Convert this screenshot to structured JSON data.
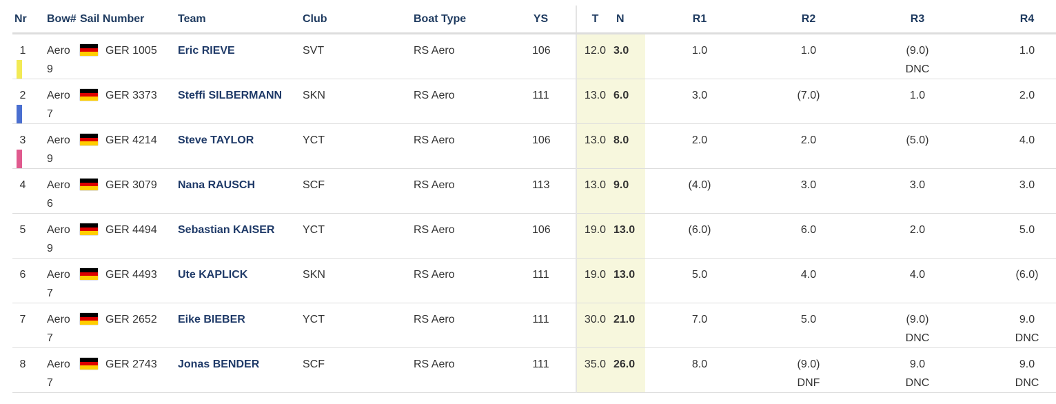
{
  "headers": {
    "nr": "Nr",
    "bow": "Bow#",
    "sail": "Sail Number",
    "team": "Team",
    "club": "Club",
    "boat_type": "Boat Type",
    "ys": "YS",
    "t": "T",
    "n": "N",
    "r1": "R1",
    "r2": "R2",
    "r3": "R3",
    "r4": "R4"
  },
  "colors": {
    "header_text": "#1e3a5f",
    "team_text": "#1f3a68",
    "highlight_column": "#f7f7dd",
    "bow_bar_1": "#f2ea55",
    "bow_bar_2": "#4a6fd0",
    "bow_bar_3": "#e05a8e"
  },
  "rows": [
    {
      "nr": "1",
      "bar": "yellow",
      "bow_a": "Aero",
      "bow_b": "9",
      "flag": "germany-flag-icon",
      "sail": "GER 1005",
      "team": "Eric RIEVE",
      "club": "SVT",
      "boat": "RS Aero",
      "ys": "106",
      "t": "12.0",
      "n": "3.0",
      "r1": "1.0",
      "r1b": "",
      "r2": "1.0",
      "r2b": "",
      "r3": "(9.0)",
      "r3b": "DNC",
      "r4": "1.0",
      "r4b": ""
    },
    {
      "nr": "2",
      "bar": "blue",
      "bow_a": "Aero",
      "bow_b": "7",
      "flag": "germany-flag-icon",
      "sail": "GER 3373",
      "team": "Steffi SILBERMANN",
      "club": "SKN",
      "boat": "RS Aero",
      "ys": "111",
      "t": "13.0",
      "n": "6.0",
      "r1": "3.0",
      "r1b": "",
      "r2": "(7.0)",
      "r2b": "",
      "r3": "1.0",
      "r3b": "",
      "r4": "2.0",
      "r4b": ""
    },
    {
      "nr": "3",
      "bar": "pink",
      "bow_a": "Aero",
      "bow_b": "9",
      "flag": "germany-flag-icon",
      "sail": "GER 4214",
      "team": "Steve TAYLOR",
      "club": "YCT",
      "boat": "RS Aero",
      "ys": "106",
      "t": "13.0",
      "n": "8.0",
      "r1": "2.0",
      "r1b": "",
      "r2": "2.0",
      "r2b": "",
      "r3": "(5.0)",
      "r3b": "",
      "r4": "4.0",
      "r4b": ""
    },
    {
      "nr": "4",
      "bar": "",
      "bow_a": "Aero",
      "bow_b": "6",
      "flag": "germany-flag-icon",
      "sail": "GER 3079",
      "team": "Nana RAUSCH",
      "club": "SCF",
      "boat": "RS Aero",
      "ys": "113",
      "t": "13.0",
      "n": "9.0",
      "r1": "(4.0)",
      "r1b": "",
      "r2": "3.0",
      "r2b": "",
      "r3": "3.0",
      "r3b": "",
      "r4": "3.0",
      "r4b": ""
    },
    {
      "nr": "5",
      "bar": "",
      "bow_a": "Aero",
      "bow_b": "9",
      "flag": "germany-flag-icon",
      "sail": "GER 4494",
      "team": "Sebastian KAISER",
      "club": "YCT",
      "boat": "RS Aero",
      "ys": "106",
      "t": "19.0",
      "n": "13.0",
      "r1": "(6.0)",
      "r1b": "",
      "r2": "6.0",
      "r2b": "",
      "r3": "2.0",
      "r3b": "",
      "r4": "5.0",
      "r4b": ""
    },
    {
      "nr": "6",
      "bar": "",
      "bow_a": "Aero",
      "bow_b": "7",
      "flag": "germany-flag-icon",
      "sail": "GER 4493",
      "team": "Ute KAPLICK",
      "club": "SKN",
      "boat": "RS Aero",
      "ys": "111",
      "t": "19.0",
      "n": "13.0",
      "r1": "5.0",
      "r1b": "",
      "r2": "4.0",
      "r2b": "",
      "r3": "4.0",
      "r3b": "",
      "r4": "(6.0)",
      "r4b": ""
    },
    {
      "nr": "7",
      "bar": "",
      "bow_a": "Aero",
      "bow_b": "7",
      "flag": "germany-flag-icon",
      "sail": "GER 2652",
      "team": "Eike BIEBER",
      "club": "YCT",
      "boat": "RS Aero",
      "ys": "111",
      "t": "30.0",
      "n": "21.0",
      "r1": "7.0",
      "r1b": "",
      "r2": "5.0",
      "r2b": "",
      "r3": "(9.0)",
      "r3b": "DNC",
      "r4": "9.0",
      "r4b": "DNC"
    },
    {
      "nr": "8",
      "bar": "",
      "bow_a": "Aero",
      "bow_b": "7",
      "flag": "germany-flag-icon",
      "sail": "GER 2743",
      "team": "Jonas BENDER",
      "club": "SCF",
      "boat": "RS Aero",
      "ys": "111",
      "t": "35.0",
      "n": "26.0",
      "r1": "8.0",
      "r1b": "",
      "r2": "(9.0)",
      "r2b": "DNF",
      "r3": "9.0",
      "r3b": "DNC",
      "r4": "9.0",
      "r4b": "DNC"
    }
  ]
}
